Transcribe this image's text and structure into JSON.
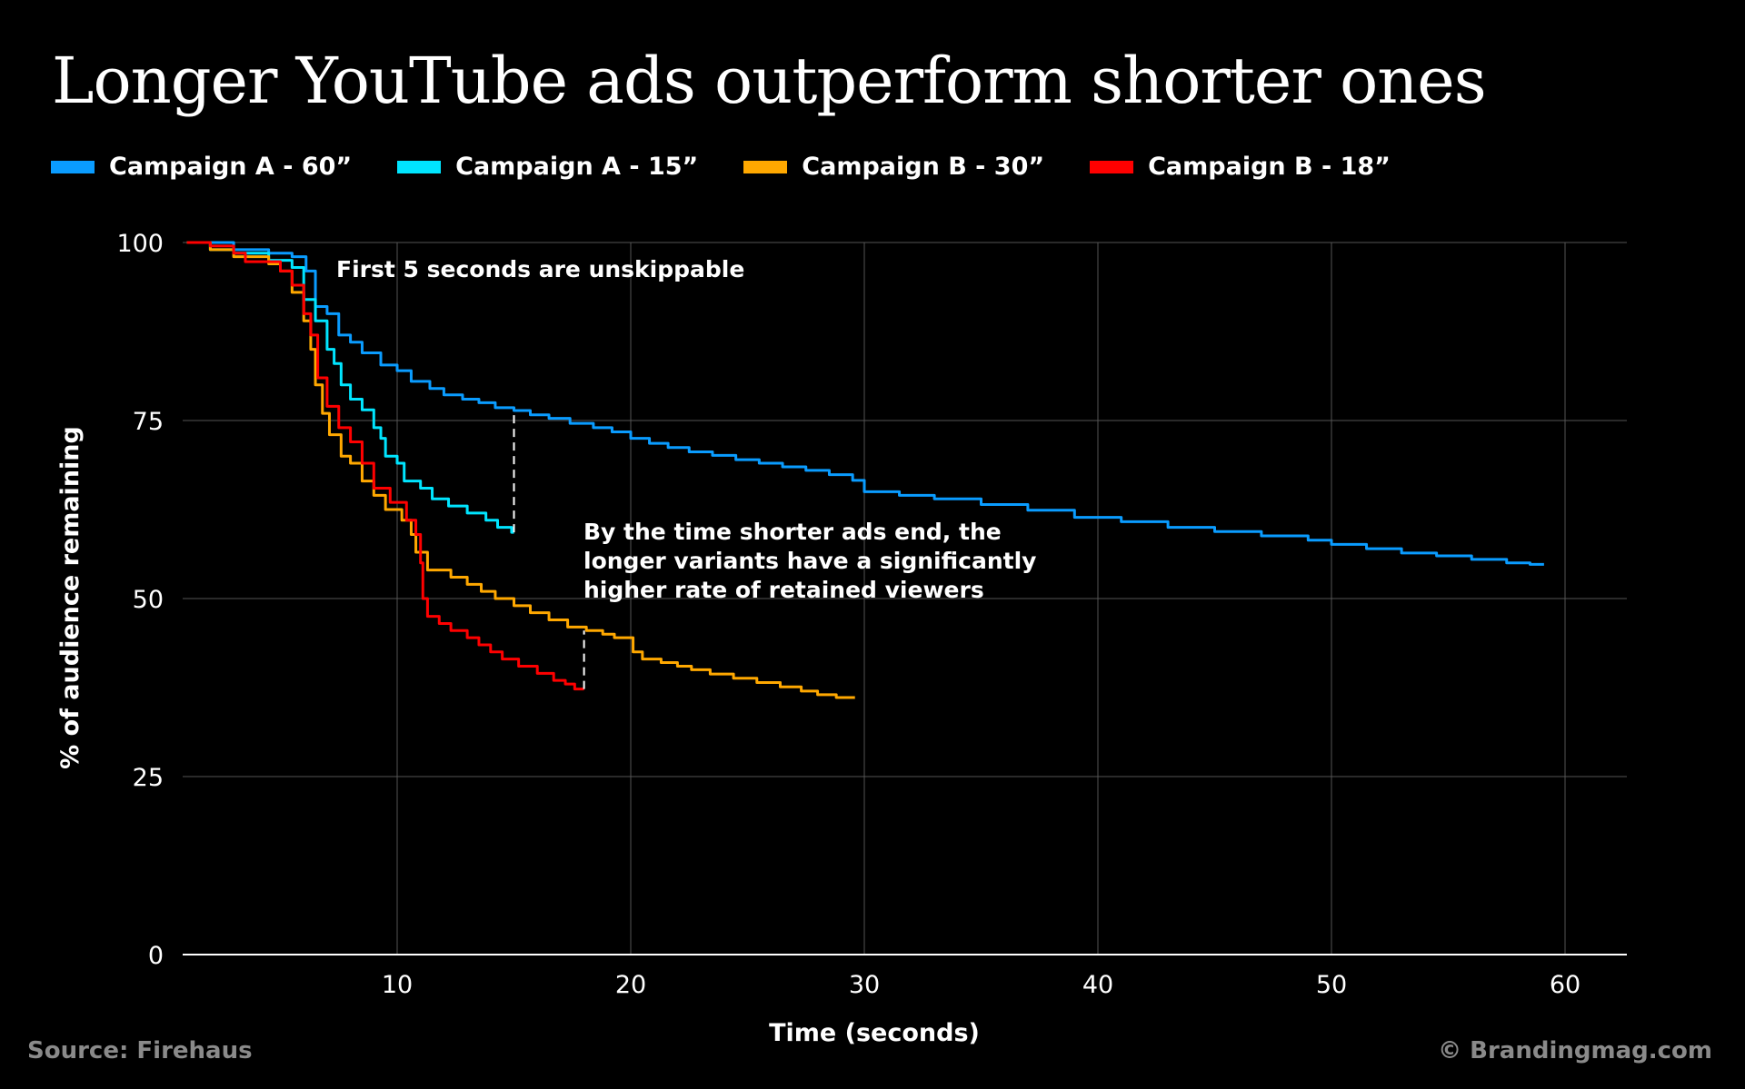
{
  "chart_data": {
    "type": "line",
    "title": "Longer YouTube ads outperform shorter ones",
    "xlabel": "Time (seconds)",
    "ylabel": "% of audience remaining",
    "xlim": [
      1,
      63
    ],
    "ylim": [
      0,
      100
    ],
    "xticks": [
      10,
      20,
      30,
      40,
      50,
      60
    ],
    "yticks": [
      0,
      25,
      50,
      75,
      100
    ],
    "grid": true,
    "legend_position": "top-left",
    "step": true,
    "series": [
      {
        "name": "Campaign A - 60”",
        "color": "#0a9cff",
        "points": [
          [
            1,
            100
          ],
          [
            3,
            99
          ],
          [
            4.5,
            98.5
          ],
          [
            5.5,
            98
          ],
          [
            6.1,
            96
          ],
          [
            6.5,
            91
          ],
          [
            7,
            90
          ],
          [
            7.5,
            87
          ],
          [
            8,
            86
          ],
          [
            8.5,
            84.5
          ],
          [
            9.3,
            82.8
          ],
          [
            10,
            82
          ],
          [
            10.6,
            80.5
          ],
          [
            11.4,
            79.5
          ],
          [
            12,
            78.6
          ],
          [
            12.8,
            78
          ],
          [
            13.5,
            77.5
          ],
          [
            14.2,
            76.8
          ],
          [
            15,
            76.4
          ],
          [
            15.7,
            75.8
          ],
          [
            16.5,
            75.3
          ],
          [
            17.4,
            74.6
          ],
          [
            18.4,
            74
          ],
          [
            19.2,
            73.4
          ],
          [
            20,
            72.5
          ],
          [
            20.8,
            71.8
          ],
          [
            21.6,
            71.2
          ],
          [
            22.5,
            70.6
          ],
          [
            23.5,
            70.1
          ],
          [
            24.5,
            69.5
          ],
          [
            25.5,
            69
          ],
          [
            26.5,
            68.5
          ],
          [
            27.5,
            68
          ],
          [
            28.5,
            67.4
          ],
          [
            29.5,
            66.6
          ],
          [
            30,
            65
          ],
          [
            31.5,
            64.5
          ],
          [
            33,
            64
          ],
          [
            35,
            63.2
          ],
          [
            37,
            62.4
          ],
          [
            39,
            61.4
          ],
          [
            41,
            60.8
          ],
          [
            43,
            60
          ],
          [
            45,
            59.4
          ],
          [
            47,
            58.8
          ],
          [
            49,
            58.2
          ],
          [
            50,
            57.6
          ],
          [
            51.5,
            57
          ],
          [
            53,
            56.4
          ],
          [
            54.5,
            56
          ],
          [
            56,
            55.5
          ],
          [
            57.5,
            55
          ],
          [
            58.5,
            54.8
          ],
          [
            59.1,
            54.8
          ]
        ]
      },
      {
        "name": "Campaign A - 15”",
        "color": "#00e5ff",
        "points": [
          [
            1,
            100
          ],
          [
            2,
            99
          ],
          [
            3,
            98.5
          ],
          [
            4.5,
            97.5
          ],
          [
            5.5,
            96.5
          ],
          [
            6,
            92
          ],
          [
            6.5,
            89
          ],
          [
            7,
            85
          ],
          [
            7.3,
            83
          ],
          [
            7.6,
            80
          ],
          [
            8,
            78
          ],
          [
            8.5,
            76.5
          ],
          [
            9,
            74
          ],
          [
            9.3,
            72.5
          ],
          [
            9.5,
            70
          ],
          [
            10,
            69
          ],
          [
            10.3,
            66.5
          ],
          [
            11,
            65.5
          ],
          [
            11.5,
            64
          ],
          [
            12.2,
            63
          ],
          [
            13,
            62
          ],
          [
            13.8,
            61
          ],
          [
            14.3,
            60
          ],
          [
            14.9,
            59.3
          ],
          [
            15,
            59.3
          ]
        ]
      },
      {
        "name": "Campaign B - 30”",
        "color": "#ffa800",
        "points": [
          [
            1,
            100
          ],
          [
            2,
            99
          ],
          [
            3,
            98
          ],
          [
            4.5,
            97
          ],
          [
            5,
            96
          ],
          [
            5.5,
            93
          ],
          [
            6,
            89
          ],
          [
            6.3,
            85
          ],
          [
            6.5,
            80
          ],
          [
            6.8,
            76
          ],
          [
            7.1,
            73
          ],
          [
            7.6,
            70
          ],
          [
            8,
            69
          ],
          [
            8.5,
            66.5
          ],
          [
            9,
            64.5
          ],
          [
            9.5,
            62.5
          ],
          [
            10.2,
            61
          ],
          [
            10.6,
            59
          ],
          [
            10.8,
            56.5
          ],
          [
            11.3,
            54
          ],
          [
            12.3,
            53
          ],
          [
            13,
            52
          ],
          [
            13.6,
            51
          ],
          [
            14.2,
            50
          ],
          [
            15,
            49
          ],
          [
            15.7,
            48
          ],
          [
            16.5,
            47
          ],
          [
            17.3,
            46
          ],
          [
            18.1,
            45.5
          ],
          [
            18.8,
            45
          ],
          [
            19.3,
            44.5
          ],
          [
            20.1,
            42.5
          ],
          [
            20.5,
            41.5
          ],
          [
            21.3,
            41
          ],
          [
            22,
            40.5
          ],
          [
            22.6,
            40
          ],
          [
            23.4,
            39.4
          ],
          [
            24.4,
            38.8
          ],
          [
            25.4,
            38.2
          ],
          [
            26.4,
            37.6
          ],
          [
            27.3,
            37
          ],
          [
            28,
            36.5
          ],
          [
            28.8,
            36.1
          ],
          [
            29.6,
            36.1
          ]
        ]
      },
      {
        "name": "Campaign B - 18”",
        "color": "#ff0000",
        "points": [
          [
            1,
            100
          ],
          [
            2,
            99.5
          ],
          [
            3,
            98.5
          ],
          [
            3.5,
            97.3
          ],
          [
            5,
            96
          ],
          [
            5.5,
            94
          ],
          [
            6,
            90
          ],
          [
            6.3,
            87
          ],
          [
            6.6,
            81
          ],
          [
            7,
            77
          ],
          [
            7.5,
            74
          ],
          [
            8,
            72
          ],
          [
            8.5,
            69
          ],
          [
            9,
            65.5
          ],
          [
            9.7,
            63.5
          ],
          [
            10.4,
            61
          ],
          [
            10.8,
            59
          ],
          [
            11,
            55
          ],
          [
            11.1,
            50
          ],
          [
            11.3,
            47.5
          ],
          [
            11.8,
            46.5
          ],
          [
            12.3,
            45.5
          ],
          [
            13,
            44.5
          ],
          [
            13.5,
            43.5
          ],
          [
            14,
            42.5
          ],
          [
            14.5,
            41.5
          ],
          [
            15.2,
            40.5
          ],
          [
            16,
            39.5
          ],
          [
            16.7,
            38.5
          ],
          [
            17.2,
            38
          ],
          [
            17.6,
            37.3
          ],
          [
            18,
            37.3
          ]
        ]
      }
    ],
    "annotations": [
      {
        "text": "First 5 seconds are unskippable"
      },
      {
        "lines": [
          "By the time shorter ads end, the",
          "longer variants have a significantly",
          "higher rate of retained viewers"
        ]
      }
    ],
    "gap_markers": [
      {
        "x": 15,
        "from": 59.3,
        "to": 76.4
      },
      {
        "x": 18,
        "from": 37.3,
        "to": 45.5
      }
    ]
  },
  "footer": {
    "source": "Source: Firehaus",
    "credit": "© Brandingmag.com"
  }
}
